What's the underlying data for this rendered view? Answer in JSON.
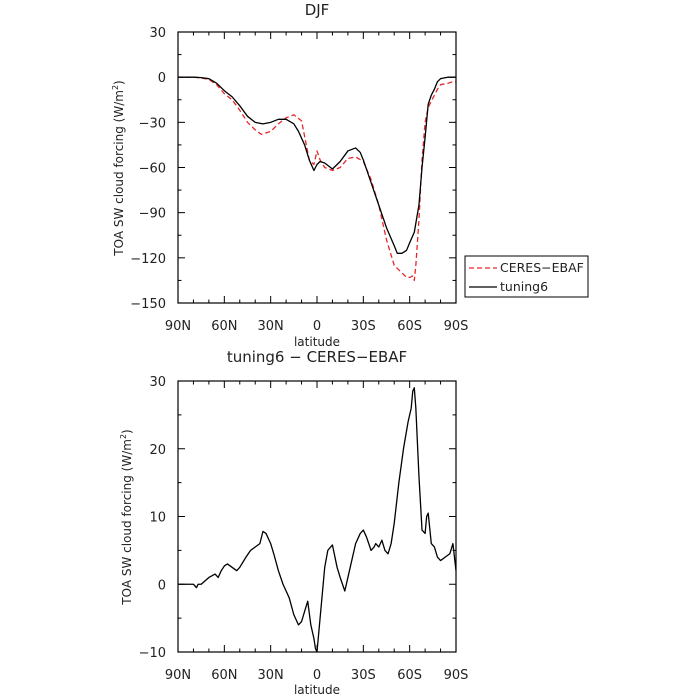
{
  "chart_data": [
    {
      "type": "line",
      "title": "DJF",
      "xlabel": "latitude",
      "ylabel": "TOA SW cloud forcing (W/m²)",
      "ylabel_main": "TOA SW cloud forcing (W/m",
      "ylabel_sup": "2",
      "ylabel_close": ")",
      "xlim": [
        90,
        -90
      ],
      "ylim": [
        -150,
        30
      ],
      "x_ticks": [
        90,
        60,
        30,
        0,
        -30,
        -60,
        -90
      ],
      "x_tick_labels": [
        "90N",
        "60N",
        "30N",
        "0",
        "30S",
        "60S",
        "90S"
      ],
      "y_ticks": [
        30,
        0,
        -30,
        -60,
        -90,
        -120,
        -150
      ],
      "y_tick_labels": [
        "30",
        "0",
        "−30",
        "−60",
        "−90",
        "−120",
        "−150"
      ],
      "legend": [
        "CERES−EBAF",
        "tuning6"
      ],
      "legend_position": "right",
      "series": [
        {
          "name": "CERES−EBAF",
          "color": "#e8262a",
          "dash": "dashed",
          "x": [
            90,
            80,
            75,
            70,
            65,
            60,
            55,
            50,
            45,
            40,
            36,
            30,
            25,
            20,
            15,
            10,
            5,
            2,
            0,
            -2,
            -5,
            -10,
            -15,
            -20,
            -25,
            -30,
            -35,
            -40,
            -45,
            -50,
            -55,
            -58,
            -60,
            -62,
            -63,
            -64,
            -66,
            -68,
            -70,
            -72,
            -75,
            -78,
            -80,
            -85,
            -88,
            -90
          ],
          "y": [
            0,
            0,
            -0.5,
            -1.5,
            -5,
            -11,
            -15,
            -22,
            -30,
            -35,
            -38,
            -36,
            -31,
            -27,
            -25,
            -29,
            -55,
            -58,
            -49,
            -55,
            -60,
            -62,
            -60,
            -54,
            -53,
            -56,
            -68,
            -85,
            -108,
            -125,
            -130,
            -133,
            -133,
            -132,
            -135,
            -125,
            -95,
            -55,
            -30,
            -20,
            -14,
            -8,
            -5,
            -4,
            -3,
            -3
          ]
        },
        {
          "name": "tuning6",
          "color": "#000000",
          "dash": "solid",
          "x": [
            90,
            80,
            75,
            70,
            65,
            60,
            55,
            50,
            45,
            40,
            35,
            30,
            25,
            20,
            15,
            12,
            8,
            5,
            2,
            0,
            -2,
            -5,
            -10,
            -15,
            -20,
            -25,
            -28,
            -30,
            -35,
            -40,
            -45,
            -50,
            -52,
            -55,
            -58,
            -60,
            -63,
            -66,
            -68,
            -70,
            -72,
            -74,
            -76,
            -78,
            -80,
            -85,
            -90
          ],
          "y": [
            0,
            0,
            -0.3,
            -1,
            -4,
            -9,
            -13,
            -19,
            -26,
            -30,
            -31,
            -30,
            -28,
            -28,
            -31,
            -36,
            -45,
            -55,
            -62,
            -58,
            -56,
            -57,
            -61,
            -56,
            -49,
            -47,
            -50,
            -55,
            -70,
            -85,
            -100,
            -112,
            -117,
            -117,
            -115,
            -110,
            -103,
            -85,
            -60,
            -40,
            -18,
            -12,
            -8,
            -3,
            -1,
            0,
            0
          ]
        }
      ]
    },
    {
      "type": "line",
      "title": "tuning6 − CERES−EBAF",
      "xlabel": "latitude",
      "ylabel": "TOA SW cloud forcing (W/m²)",
      "ylabel_main": "TOA SW cloud forcing (W/m",
      "ylabel_sup": "2",
      "ylabel_close": ")",
      "xlim": [
        90,
        -90
      ],
      "ylim": [
        -10,
        30
      ],
      "x_ticks": [
        90,
        60,
        30,
        0,
        -30,
        -60,
        -90
      ],
      "x_tick_labels": [
        "90N",
        "60N",
        "30N",
        "0",
        "30S",
        "60S",
        "90S"
      ],
      "y_ticks": [
        30,
        20,
        10,
        0,
        -10
      ],
      "y_tick_labels": [
        "30",
        "20",
        "10",
        "0",
        "−10"
      ],
      "series": [
        {
          "name": "tuning6",
          "color": "#000000",
          "dash": "solid",
          "x": [
            90,
            80,
            78,
            77,
            75,
            70,
            66,
            64,
            62,
            60,
            58,
            55,
            52,
            50,
            46,
            43,
            40,
            37,
            35,
            33,
            30,
            28,
            25,
            22,
            18,
            15,
            12,
            10,
            8,
            6,
            4,
            2,
            1,
            0,
            -1,
            -3,
            -5,
            -7,
            -10,
            -13,
            -15,
            -18,
            -22,
            -25,
            -28,
            -30,
            -32,
            -35,
            -37,
            -38,
            -40,
            -42,
            -44,
            -46,
            -48,
            -50,
            -53,
            -56,
            -59,
            -61,
            -62,
            -63,
            -64,
            -66,
            -68,
            -70,
            -71,
            -72,
            -74,
            -76,
            -78,
            -80,
            -83,
            -86,
            -88,
            -90
          ],
          "y": [
            0,
            0,
            -0.5,
            0,
            0,
            1,
            1.5,
            1,
            2,
            2.7,
            3,
            2.5,
            2,
            2.5,
            4,
            5,
            5.5,
            6,
            7.8,
            7.5,
            6,
            4.5,
            2,
            0,
            -2,
            -4.5,
            -6,
            -5.5,
            -4,
            -2.5,
            -6,
            -8,
            -9.5,
            -10,
            -7.5,
            -2.5,
            2.5,
            5,
            5.8,
            2.5,
            1,
            -1,
            3,
            6,
            7.5,
            8,
            7,
            5,
            5.5,
            6,
            5.5,
            6.5,
            5,
            4.5,
            6,
            9,
            15,
            20,
            24,
            26,
            28.5,
            29,
            26,
            16,
            8,
            7.5,
            10,
            10.5,
            6,
            5.5,
            4,
            3.5,
            4,
            4.5,
            6,
            2
          ]
        }
      ]
    }
  ]
}
